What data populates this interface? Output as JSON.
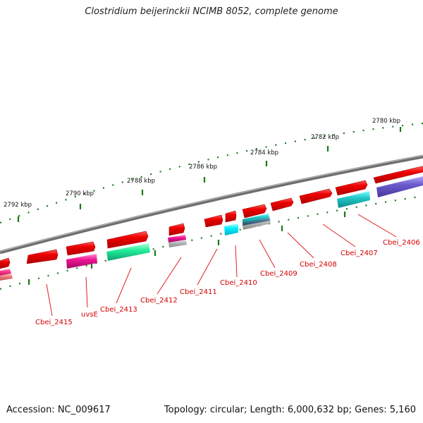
{
  "title": "Clostridium beijerinckii NCIMB 8052, complete genome",
  "accession": "Accession: NC_009617",
  "topology": "Topology: circular; Length: 6,000,632 bp; Genes: 5,160",
  "ruler_labels": [
    "2780 kbp",
    "2782 kbp",
    "2784 kbp",
    "2786 kbp",
    "2788 kbp",
    "2790 kbp",
    "2792 kbp"
  ],
  "gene_labels": [
    "Cbei_2406",
    "Cbei_2407",
    "Cbei_2408",
    "Cbei_2409",
    "Cbei_2410",
    "Cbei_2411",
    "Cbei_2412",
    "Cbei_2413",
    "uvsE",
    "Cbei_2415"
  ],
  "colors": {
    "backbone": "#7a7a7a",
    "gene_red": "#ee0000",
    "label_red": "#d40000",
    "tick_green": "#1a7a1a",
    "teal": "#1fc0c0",
    "cyan": "#00f0ff",
    "green": "#22ee99",
    "magenta": "#ee1493",
    "purple": "#6a5acd",
    "pink": "#ff3a8a",
    "grey": "#b0b0b0",
    "steel": "#4a7a9a"
  }
}
